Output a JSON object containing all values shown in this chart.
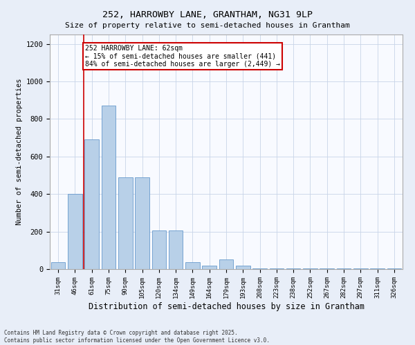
{
  "title": "252, HARROWBY LANE, GRANTHAM, NG31 9LP",
  "subtitle": "Size of property relative to semi-detached houses in Grantham",
  "xlabel": "Distribution of semi-detached houses by size in Grantham",
  "ylabel": "Number of semi-detached properties",
  "categories": [
    "31sqm",
    "46sqm",
    "61sqm",
    "75sqm",
    "90sqm",
    "105sqm",
    "120sqm",
    "134sqm",
    "149sqm",
    "164sqm",
    "179sqm",
    "193sqm",
    "208sqm",
    "223sqm",
    "238sqm",
    "252sqm",
    "267sqm",
    "282sqm",
    "297sqm",
    "311sqm",
    "326sqm"
  ],
  "values": [
    35,
    400,
    690,
    870,
    490,
    490,
    205,
    205,
    35,
    20,
    50,
    20,
    5,
    5,
    5,
    5,
    5,
    5,
    5,
    5,
    5
  ],
  "bar_color": "#b8d0e8",
  "bar_edge_color": "#6699cc",
  "property_line_index": 1.5,
  "annotation_text": "252 HARROWBY LANE: 62sqm\n← 15% of semi-detached houses are smaller (441)\n84% of semi-detached houses are larger (2,449) →",
  "annotation_box_color": "#ffffff",
  "annotation_box_edge_color": "#cc0000",
  "property_line_color": "#cc0000",
  "footer_line1": "Contains HM Land Registry data © Crown copyright and database right 2025.",
  "footer_line2": "Contains public sector information licensed under the Open Government Licence v3.0.",
  "ylim": [
    0,
    1250
  ],
  "yticks": [
    0,
    200,
    400,
    600,
    800,
    1000,
    1200
  ],
  "background_color": "#e8eef8",
  "plot_bg_color": "#f8faff"
}
